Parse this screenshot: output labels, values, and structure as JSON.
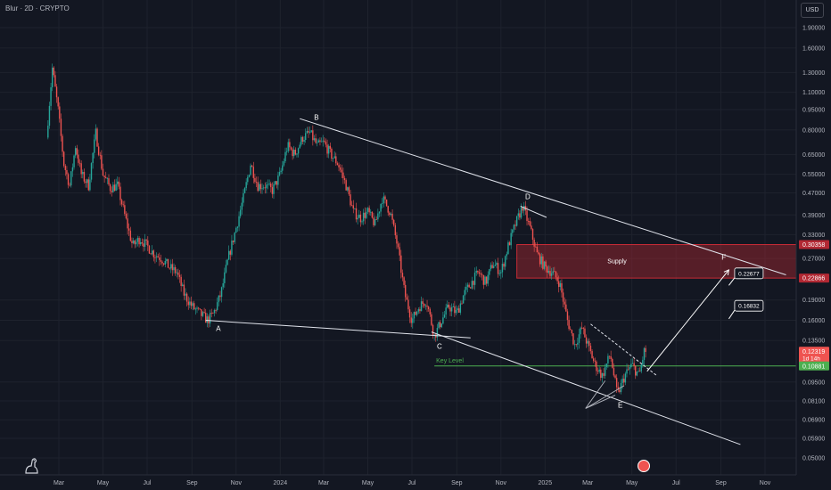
{
  "header": {
    "title": "Blur · 2D · CRYPTO",
    "currency": "USD"
  },
  "colors": {
    "background": "#131722",
    "up": "#26a69a",
    "down": "#ef5350",
    "supply_zone": "#b22833",
    "key_level": "#4caf50",
    "annotation": "#e0e3eb"
  },
  "icons": {
    "logo": "tradingview-dino-icon",
    "badge": "earnings-badge-icon"
  },
  "chart_data": {
    "type": "candlestick",
    "scale": "log",
    "ylim": [
      0.045,
      2.2
    ],
    "y_ticks": [
      {
        "value": 1.9,
        "label": "1.90000"
      },
      {
        "value": 1.6,
        "label": "1.60000"
      },
      {
        "value": 1.3,
        "label": "1.30000"
      },
      {
        "value": 1.1,
        "label": "1.10000"
      },
      {
        "value": 0.95,
        "label": "0.95000"
      },
      {
        "value": 0.8,
        "label": "0.80000"
      },
      {
        "value": 0.65,
        "label": "0.65000"
      },
      {
        "value": 0.55,
        "label": "0.55000"
      },
      {
        "value": 0.47,
        "label": "0.47000"
      },
      {
        "value": 0.39,
        "label": "0.39000"
      },
      {
        "value": 0.33,
        "label": "0.33000"
      },
      {
        "value": 0.27,
        "label": "0.27000"
      },
      {
        "value": 0.19,
        "label": "0.19000"
      },
      {
        "value": 0.16,
        "label": "0.16000"
      },
      {
        "value": 0.135,
        "label": "0.13500"
      },
      {
        "value": 0.095,
        "label": "0.09500"
      },
      {
        "value": 0.081,
        "label": "0.08100"
      },
      {
        "value": 0.069,
        "label": "0.06900"
      },
      {
        "value": 0.059,
        "label": "0.05900"
      },
      {
        "value": 0.05,
        "label": "0.05000"
      }
    ],
    "x_ticks": [
      {
        "date": "2023-03-01",
        "label": "Mar"
      },
      {
        "date": "2023-05-01",
        "label": "May"
      },
      {
        "date": "2023-07-01",
        "label": "Jul"
      },
      {
        "date": "2023-09-01",
        "label": "Sep"
      },
      {
        "date": "2023-11-01",
        "label": "Nov"
      },
      {
        "date": "2024-01-01",
        "label": "2024"
      },
      {
        "date": "2024-03-01",
        "label": "Mar"
      },
      {
        "date": "2024-05-01",
        "label": "May"
      },
      {
        "date": "2024-07-01",
        "label": "Jul"
      },
      {
        "date": "2024-09-01",
        "label": "Sep"
      },
      {
        "date": "2024-11-01",
        "label": "Nov"
      },
      {
        "date": "2025-01-01",
        "label": "2025"
      },
      {
        "date": "2025-03-01",
        "label": "Mar"
      },
      {
        "date": "2025-05-01",
        "label": "May"
      },
      {
        "date": "2025-07-01",
        "label": "Jul"
      },
      {
        "date": "2025-09-01",
        "label": "Sep"
      },
      {
        "date": "2025-11-01",
        "label": "Nov"
      }
    ],
    "price_path": [
      [
        "2023-02-14",
        0.75
      ],
      [
        "2023-02-22",
        1.35
      ],
      [
        "2023-03-02",
        0.95
      ],
      [
        "2023-03-10",
        0.6
      ],
      [
        "2023-03-18",
        0.5
      ],
      [
        "2023-03-26",
        0.7
      ],
      [
        "2023-04-03",
        0.55
      ],
      [
        "2023-04-13",
        0.5
      ],
      [
        "2023-04-23",
        0.78
      ],
      [
        "2023-05-03",
        0.55
      ],
      [
        "2023-05-13",
        0.49
      ],
      [
        "2023-05-23",
        0.5
      ],
      [
        "2023-06-03",
        0.38
      ],
      [
        "2023-06-13",
        0.3
      ],
      [
        "2023-06-23",
        0.32
      ],
      [
        "2023-07-03",
        0.3
      ],
      [
        "2023-07-13",
        0.28
      ],
      [
        "2023-07-23",
        0.27
      ],
      [
        "2023-08-03",
        0.25
      ],
      [
        "2023-08-13",
        0.24
      ],
      [
        "2023-08-23",
        0.2
      ],
      [
        "2023-09-03",
        0.18
      ],
      [
        "2023-09-13",
        0.17
      ],
      [
        "2023-09-25",
        0.16
      ],
      [
        "2023-10-03",
        0.17
      ],
      [
        "2023-10-13",
        0.2
      ],
      [
        "2023-10-23",
        0.27
      ],
      [
        "2023-11-03",
        0.35
      ],
      [
        "2023-11-13",
        0.45
      ],
      [
        "2023-11-23",
        0.6
      ],
      [
        "2023-12-03",
        0.5
      ],
      [
        "2023-12-13",
        0.5
      ],
      [
        "2023-12-23",
        0.48
      ],
      [
        "2024-01-03",
        0.55
      ],
      [
        "2024-01-13",
        0.7
      ],
      [
        "2024-01-23",
        0.65
      ],
      [
        "2024-02-03",
        0.75
      ],
      [
        "2024-02-13",
        0.78
      ],
      [
        "2024-02-23",
        0.7
      ],
      [
        "2024-03-03",
        0.72
      ],
      [
        "2024-03-13",
        0.65
      ],
      [
        "2024-03-23",
        0.6
      ],
      [
        "2024-04-03",
        0.5
      ],
      [
        "2024-04-13",
        0.4
      ],
      [
        "2024-04-23",
        0.38
      ],
      [
        "2024-05-03",
        0.4
      ],
      [
        "2024-05-13",
        0.36
      ],
      [
        "2024-05-23",
        0.45
      ],
      [
        "2024-06-03",
        0.4
      ],
      [
        "2024-06-13",
        0.3
      ],
      [
        "2024-06-23",
        0.2
      ],
      [
        "2024-07-03",
        0.16
      ],
      [
        "2024-07-13",
        0.18
      ],
      [
        "2024-07-23",
        0.19
      ],
      [
        "2024-08-03",
        0.14
      ],
      [
        "2024-08-13",
        0.16
      ],
      [
        "2024-08-23",
        0.18
      ],
      [
        "2024-09-03",
        0.17
      ],
      [
        "2024-09-13",
        0.2
      ],
      [
        "2024-09-23",
        0.22
      ],
      [
        "2024-10-03",
        0.24
      ],
      [
        "2024-10-13",
        0.22
      ],
      [
        "2024-10-23",
        0.26
      ],
      [
        "2024-11-03",
        0.24
      ],
      [
        "2024-11-13",
        0.3
      ],
      [
        "2024-11-23",
        0.36
      ],
      [
        "2024-12-03",
        0.42
      ],
      [
        "2024-12-13",
        0.35
      ],
      [
        "2024-12-23",
        0.28
      ],
      [
        "2025-01-03",
        0.25
      ],
      [
        "2025-01-13",
        0.24
      ],
      [
        "2025-01-23",
        0.22
      ],
      [
        "2025-02-03",
        0.16
      ],
      [
        "2025-02-13",
        0.13
      ],
      [
        "2025-02-23",
        0.15
      ],
      [
        "2025-03-03",
        0.13
      ],
      [
        "2025-03-13",
        0.11
      ],
      [
        "2025-03-23",
        0.1
      ],
      [
        "2025-04-03",
        0.12
      ],
      [
        "2025-04-13",
        0.085
      ],
      [
        "2025-04-23",
        0.1
      ],
      [
        "2025-05-03",
        0.11
      ],
      [
        "2025-05-13",
        0.1
      ],
      [
        "2025-05-20",
        0.123
      ]
    ],
    "supply_zone": {
      "label": "Supply",
      "from": "2024-11-23",
      "to": "2025-12-31",
      "low": 0.22866,
      "high": 0.30358
    },
    "key_level": {
      "label": "Key Level",
      "price": 0.10881,
      "from": "2024-08-01"
    },
    "points": [
      {
        "label": "A",
        "date": "2023-10-05",
        "price": 0.16
      },
      {
        "label": "B",
        "date": "2024-02-20",
        "price": 0.82
      },
      {
        "label": "C",
        "date": "2024-08-08",
        "price": 0.14
      },
      {
        "label": "D",
        "date": "2024-12-08",
        "price": 0.42
      },
      {
        "label": "E",
        "date": "2025-04-15",
        "price": 0.085
      },
      {
        "label": "F",
        "date": "2025-09-05",
        "price": 0.255
      }
    ],
    "trendlines": [
      {
        "from": [
          "2024-01-28",
          0.88
        ],
        "to": [
          "2025-11-30",
          0.235
        ]
      },
      {
        "from": [
          "2024-11-28",
          0.42
        ],
        "to": [
          "2025-01-03",
          0.382
        ]
      },
      {
        "from": [
          "2023-09-20",
          0.16
        ],
        "to": [
          "2024-09-20",
          0.138
        ]
      },
      {
        "from": [
          "2024-07-28",
          0.145
        ],
        "to": [
          "2025-09-28",
          0.056
        ]
      }
    ],
    "projection": {
      "line_from": [
        "2025-05-22",
        0.104
      ],
      "line_to": [
        "2025-09-12",
        0.245
      ],
      "dashed_from": [
        "2025-03-05",
        0.155
      ],
      "dashed_to": [
        "2025-06-05",
        0.1
      ]
    },
    "triangle_from": "2025-02-26",
    "triangle_price": 0.076,
    "triangle_targets": [
      [
        "2025-03-25",
        0.096
      ],
      [
        "2025-04-20",
        0.092
      ],
      [
        "2025-04-08",
        0.085
      ]
    ],
    "targets": [
      {
        "label": "0.22677",
        "date": "2025-09-20",
        "price": 0.238,
        "arrow_from": [
          "2025-09-12",
          0.215
        ]
      },
      {
        "label": "0.16832",
        "date": "2025-09-20",
        "price": 0.181,
        "arrow_from": [
          "2025-09-12",
          0.162
        ]
      }
    ],
    "price_labels": [
      {
        "label": "0.30358",
        "price": 0.30358,
        "color": "#b22833"
      },
      {
        "label": "0.22866",
        "price": 0.22866,
        "color": "#b22833"
      },
      {
        "label": "0.12319",
        "sub": "1d 14h",
        "price": 0.12319,
        "color": "#ef5350"
      },
      {
        "label": "0.10881",
        "price": 0.10881,
        "color": "#4caf50"
      }
    ]
  }
}
